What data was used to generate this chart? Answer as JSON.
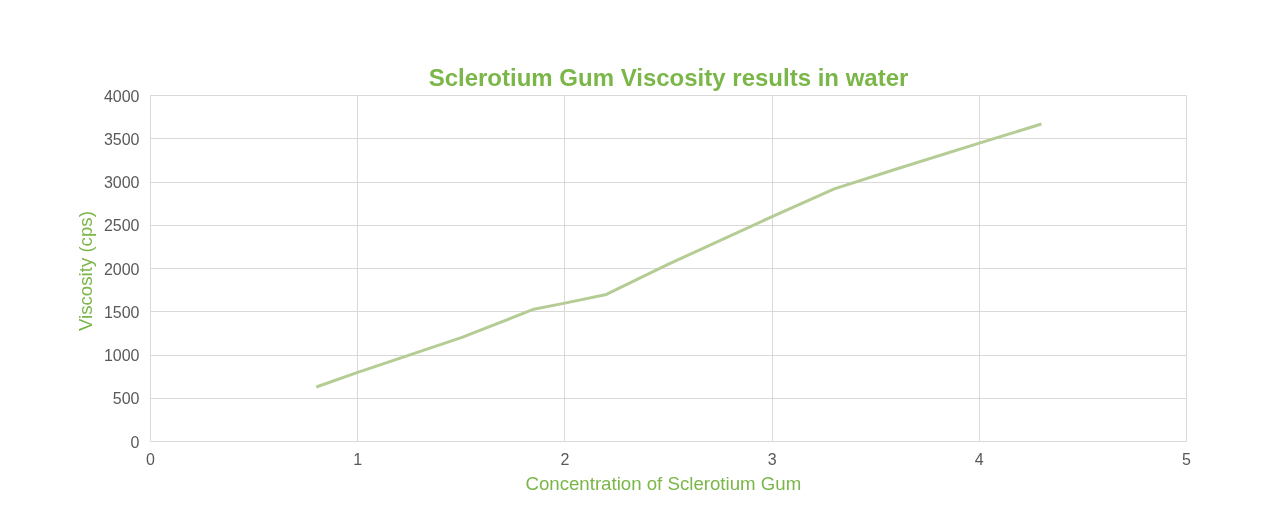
{
  "chart_data": {
    "type": "line",
    "title": "Sclerotium Gum Viscosity results in water",
    "xlabel": "Concentration  of  Sclerotium Gum",
    "ylabel": "Viscosity  (cps)",
    "x": [
      0.8,
      1.0,
      1.5,
      1.85,
      2.0,
      2.2,
      2.5,
      3.0,
      3.3,
      3.6,
      4.0,
      4.3
    ],
    "series": [
      {
        "color": "#b5cc95",
        "values": [
          630,
          800,
          1200,
          1530,
          1600,
          1700,
          2050,
          2600,
          2920,
          3150,
          3450,
          3670
        ]
      }
    ],
    "xlim": [
      0,
      5
    ],
    "xticks": [
      0,
      1,
      2,
      3,
      4,
      5
    ],
    "ylim": [
      0,
      4000
    ],
    "yticks": [
      0,
      500,
      1000,
      1500,
      2000,
      2500,
      3000,
      3500,
      4000
    ],
    "grid": true,
    "marker": "none",
    "line_style": "solid"
  }
}
